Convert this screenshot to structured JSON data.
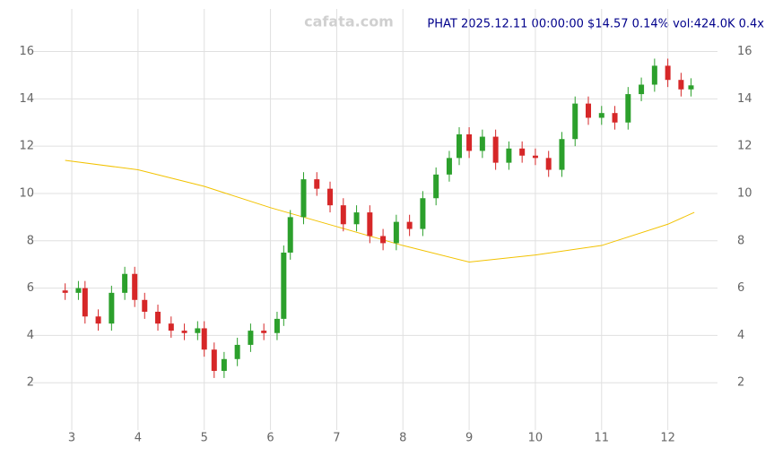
{
  "chart_data": {
    "type": "candlestick",
    "title": "PHAT 2025.12.11 00:00:00 $14.57 0.14% vol:424.0K 0.4x",
    "watermark": "cafata.com",
    "x": [
      2.9,
      3.1,
      3.2,
      3.4,
      3.6,
      3.8,
      3.95,
      4.1,
      4.3,
      4.5,
      4.7,
      4.9,
      5.0,
      5.15,
      5.3,
      5.5,
      5.7,
      5.9,
      6.1,
      6.2,
      6.3,
      6.5,
      6.7,
      6.9,
      7.1,
      7.3,
      7.5,
      7.7,
      7.9,
      8.1,
      8.3,
      8.5,
      8.7,
      8.85,
      9.0,
      9.2,
      9.4,
      9.6,
      9.8,
      10.0,
      10.2,
      10.4,
      10.6,
      10.8,
      11.0,
      11.2,
      11.4,
      11.6,
      11.8,
      12.0,
      12.2,
      12.35
    ],
    "open": [
      5.9,
      5.8,
      6.0,
      4.8,
      4.5,
      5.8,
      6.6,
      5.5,
      5.0,
      4.5,
      4.2,
      4.1,
      4.3,
      3.4,
      2.5,
      3.0,
      3.6,
      4.2,
      4.1,
      4.7,
      7.5,
      9.0,
      10.6,
      10.2,
      9.5,
      8.7,
      9.2,
      8.2,
      7.9,
      8.8,
      8.5,
      9.8,
      10.8,
      11.5,
      12.5,
      11.8,
      12.4,
      11.3,
      11.9,
      11.6,
      11.5,
      11.0,
      12.3,
      13.8,
      13.2,
      13.4,
      13.0,
      14.2,
      14.6,
      15.4,
      14.8,
      14.4
    ],
    "high": [
      6.2,
      6.3,
      6.3,
      5.1,
      6.1,
      6.9,
      6.9,
      5.8,
      5.3,
      4.8,
      4.5,
      4.6,
      4.6,
      3.7,
      3.3,
      3.9,
      4.5,
      4.5,
      5.0,
      7.8,
      9.3,
      10.9,
      10.9,
      10.5,
      9.8,
      9.5,
      9.5,
      8.5,
      9.1,
      9.1,
      10.1,
      11.1,
      11.8,
      12.8,
      12.8,
      12.7,
      12.7,
      12.2,
      12.2,
      11.9,
      11.8,
      12.6,
      14.1,
      14.1,
      13.7,
      13.7,
      14.5,
      14.9,
      15.7,
      15.7,
      15.1,
      14.87
    ],
    "low": [
      5.5,
      5.5,
      4.5,
      4.2,
      4.2,
      5.5,
      5.2,
      4.7,
      4.2,
      3.9,
      3.8,
      3.8,
      3.1,
      2.2,
      2.2,
      2.7,
      3.3,
      3.8,
      3.8,
      4.4,
      7.2,
      8.7,
      9.9,
      9.2,
      8.4,
      8.4,
      7.9,
      7.6,
      7.6,
      8.2,
      8.2,
      9.5,
      10.5,
      11.2,
      11.5,
      11.5,
      11.0,
      11.0,
      11.3,
      11.2,
      10.7,
      10.7,
      12.0,
      12.9,
      12.9,
      12.7,
      12.7,
      13.9,
      14.3,
      14.5,
      14.1,
      14.1
    ],
    "close": [
      5.8,
      6.0,
      4.8,
      4.5,
      5.8,
      6.6,
      5.5,
      5.0,
      4.5,
      4.2,
      4.1,
      4.3,
      3.4,
      2.5,
      3.0,
      3.6,
      4.2,
      4.1,
      4.7,
      7.5,
      9.0,
      10.6,
      10.2,
      9.5,
      8.7,
      9.2,
      8.2,
      7.9,
      8.8,
      8.5,
      9.8,
      10.8,
      11.5,
      12.5,
      11.8,
      12.4,
      11.3,
      11.9,
      11.6,
      11.5,
      11.0,
      12.3,
      13.8,
      13.2,
      13.4,
      13.0,
      14.2,
      14.6,
      15.4,
      14.8,
      14.4,
      14.57
    ],
    "up_color": "#2ca02c",
    "down_color": "#d62728",
    "lines": [
      {
        "color": "#f2c200",
        "x": [
          2.9,
          4,
          5,
          6,
          7,
          8,
          9,
          10,
          11,
          12,
          12.4
        ],
        "values": [
          11.4,
          11.0,
          10.3,
          9.4,
          8.6,
          7.8,
          7.1,
          7.4,
          7.8,
          8.7,
          9.2
        ]
      }
    ],
    "xlim": [
      2.39,
      12.75
    ],
    "ylim": [
      0,
      17.8
    ],
    "xticks": [
      3,
      4,
      5,
      6,
      7,
      8,
      9,
      10,
      11,
      12
    ],
    "yticks": [
      2,
      4,
      6,
      8,
      10,
      12,
      14,
      16
    ],
    "grid": true
  }
}
